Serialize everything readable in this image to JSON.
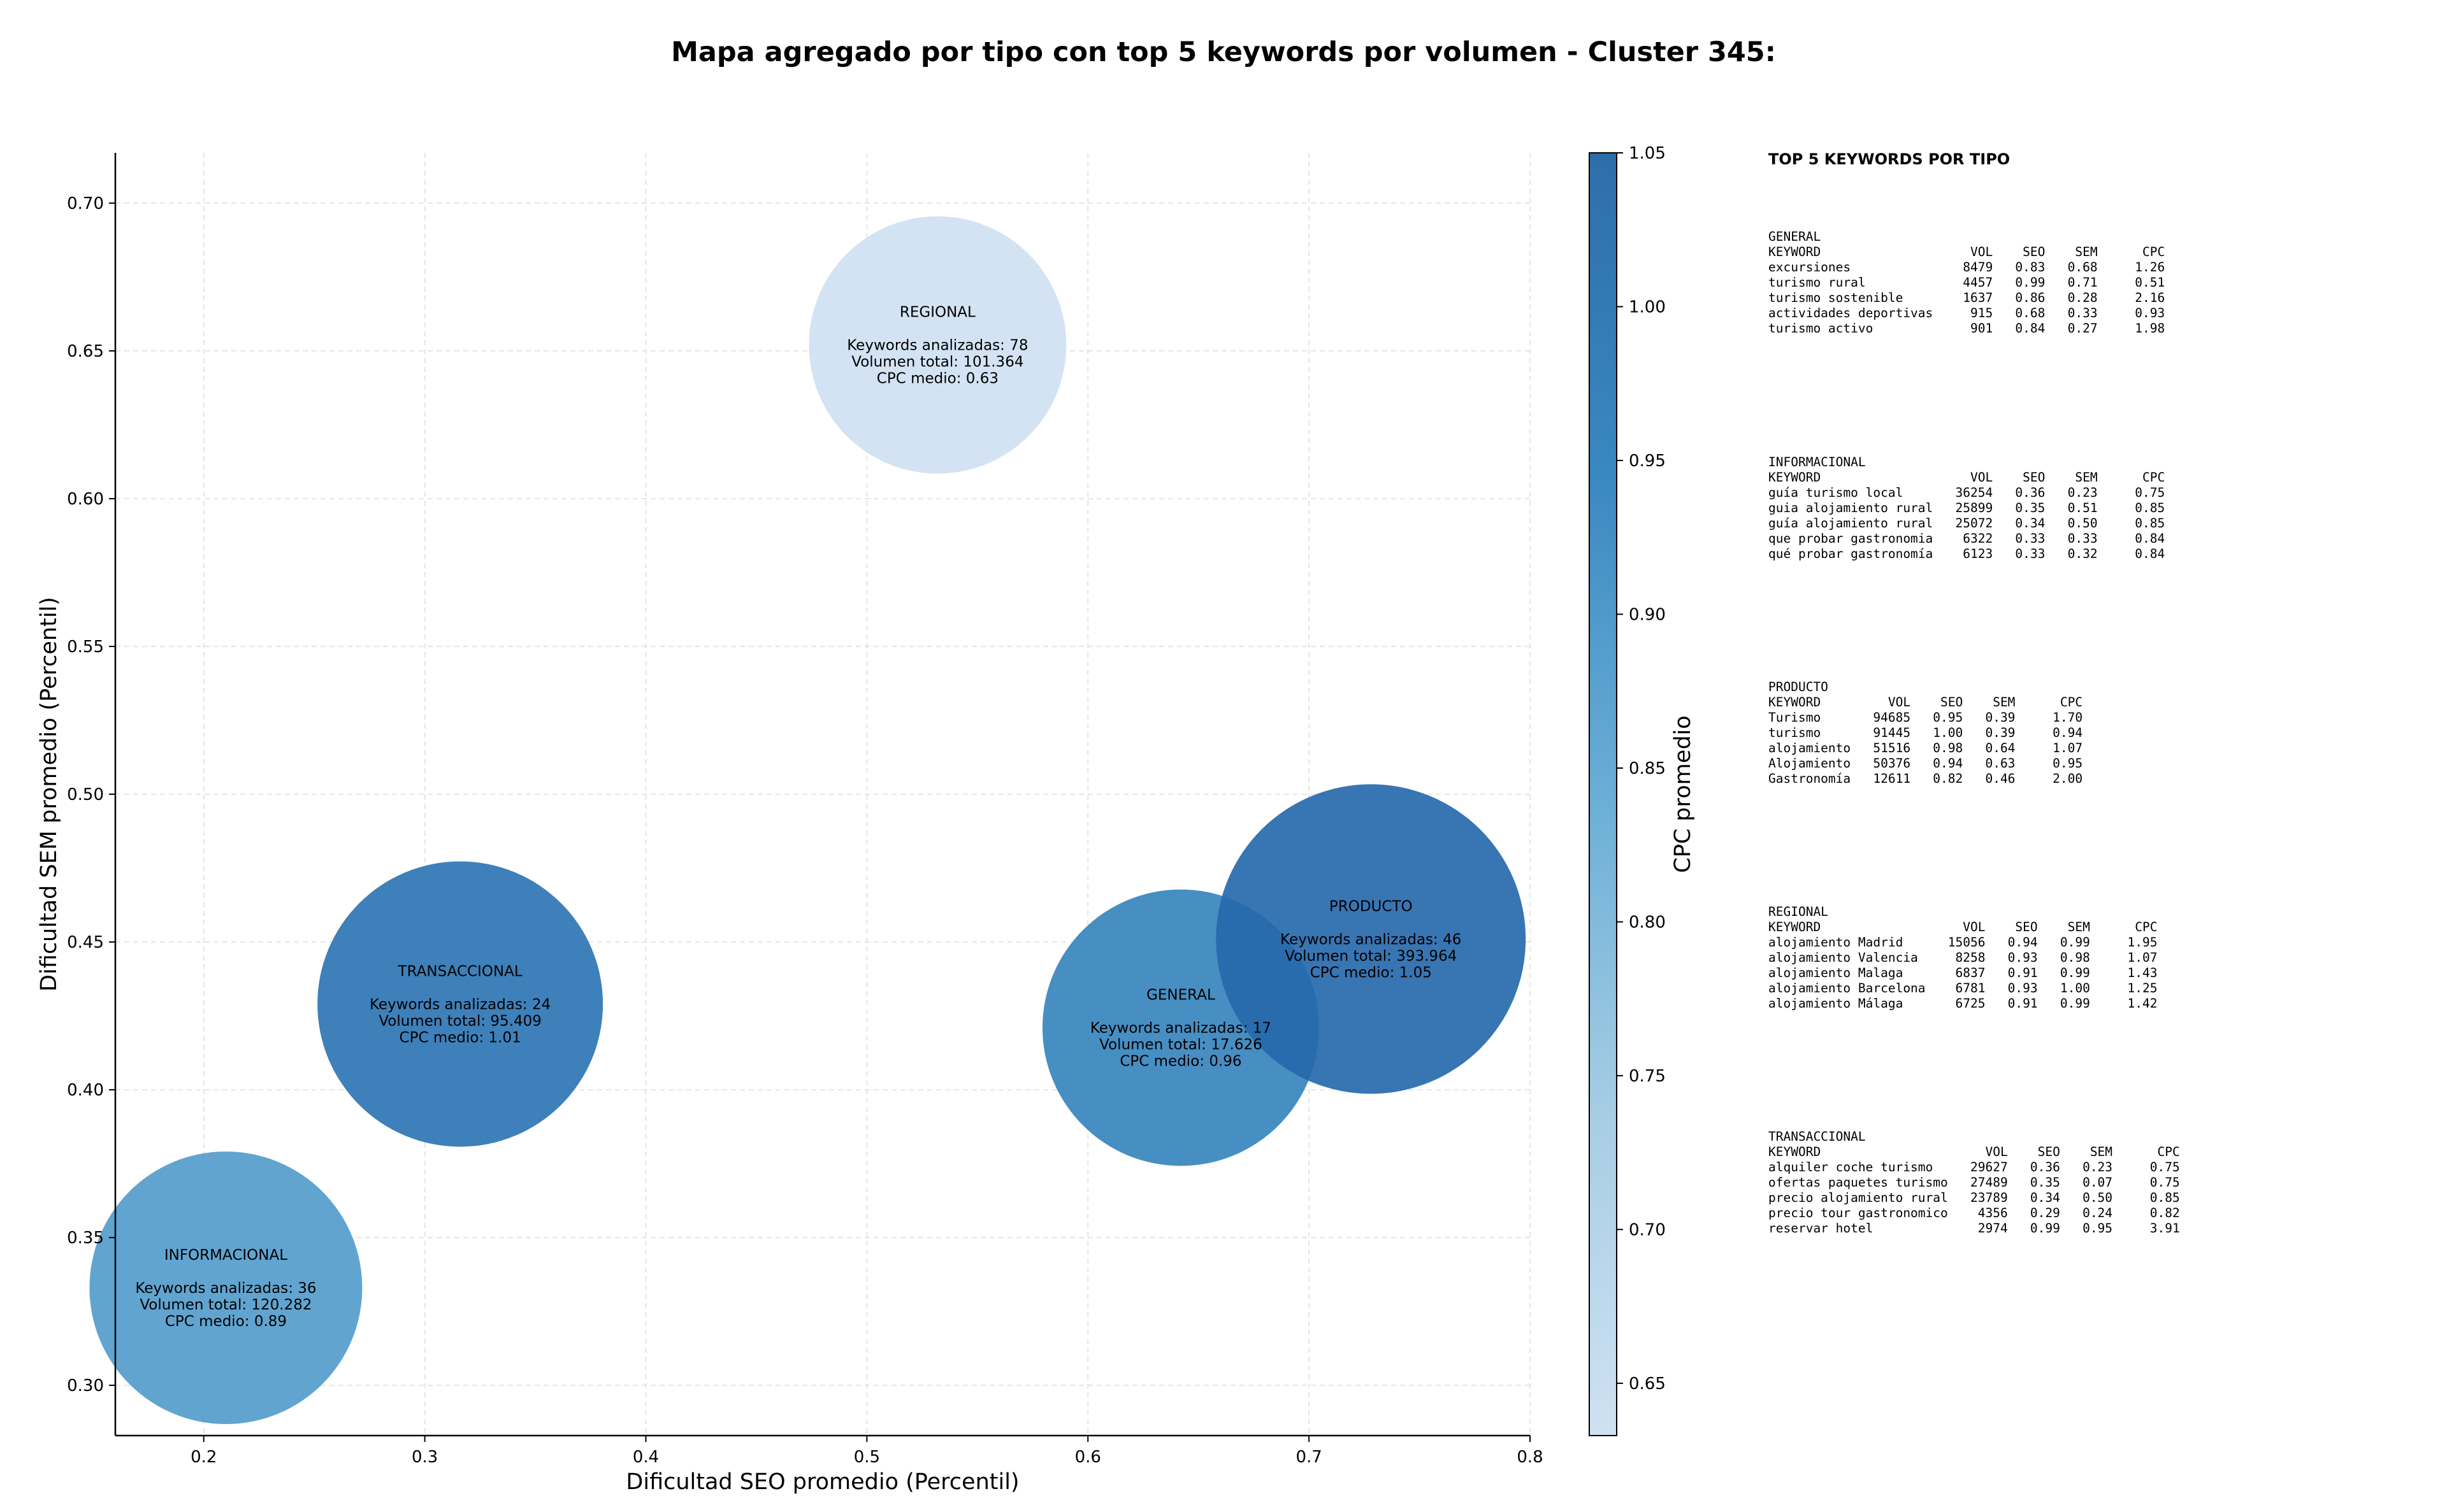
{
  "chart_data": {
    "type": "scatter",
    "title": "Mapa agregado por tipo con top 5 keywords por volumen - Cluster 345:",
    "xlabel": "Dificultad SEO promedio (Percentil)",
    "ylabel": "Dificultad SEM promedio (Percentil)",
    "xlim": [
      0.16,
      0.8
    ],
    "ylim": [
      0.283,
      0.717
    ],
    "x_ticks": [
      0.2,
      0.3,
      0.4,
      0.5,
      0.6,
      0.7,
      0.8
    ],
    "x_tick_labels": [
      "0.2",
      "0.3",
      "0.4",
      "0.5",
      "0.6",
      "0.7",
      "0.8"
    ],
    "y_ticks": [
      0.3,
      0.35,
      0.4,
      0.45,
      0.5,
      0.55,
      0.6,
      0.65,
      0.7
    ],
    "y_tick_labels": [
      "0.30",
      "0.35",
      "0.40",
      "0.45",
      "0.50",
      "0.55",
      "0.60",
      "0.65",
      "0.70"
    ],
    "grid": true,
    "colorbar": {
      "label": "CPC promedio",
      "range": [
        0.633,
        1.05
      ],
      "ticks": [
        0.65,
        0.7,
        0.75,
        0.8,
        0.85,
        0.9,
        0.95,
        1.0,
        1.05
      ],
      "tick_labels": [
        "0.65",
        "0.70",
        "0.75",
        "0.80",
        "0.85",
        "0.90",
        "0.95",
        "1.00",
        "1.05"
      ]
    },
    "points": [
      {
        "tipo": "REGIONAL",
        "x": 0.532,
        "y": 0.652,
        "keywords": 78,
        "volumen": 101364,
        "cpc": 0.63,
        "label_lines": [
          "REGIONAL",
          "",
          "Keywords analizadas: 78",
          "Volumen total: 101.364",
          "CPC medio: 0.63"
        ]
      },
      {
        "tipo": "TRANSACCIONAL",
        "x": 0.316,
        "y": 0.429,
        "keywords": 24,
        "volumen": 95409,
        "cpc": 1.01,
        "label_lines": [
          "TRANSACCIONAL",
          "",
          "Keywords analizadas: 24",
          "Volumen total: 95.409",
          "CPC medio: 1.01"
        ]
      },
      {
        "tipo": "INFORMACIONAL",
        "x": 0.21,
        "y": 0.333,
        "keywords": 36,
        "volumen": 120282,
        "cpc": 0.89,
        "label_lines": [
          "INFORMACIONAL",
          "",
          "Keywords analizadas: 36",
          "Volumen total: 120.282",
          "CPC medio: 0.89"
        ]
      },
      {
        "tipo": "GENERAL",
        "x": 0.642,
        "y": 0.421,
        "keywords": 17,
        "volumen": 17626,
        "cpc": 0.96,
        "label_lines": [
          "GENERAL",
          "",
          "Keywords analizadas: 17",
          "Volumen total: 17.626",
          "CPC medio: 0.96"
        ]
      },
      {
        "tipo": "PRODUCTO",
        "x": 0.728,
        "y": 0.451,
        "keywords": 46,
        "volumen": 393964,
        "cpc": 1.05,
        "label_lines": [
          "PRODUCTO",
          "",
          "Keywords analizadas: 46",
          "Volumen total: 393.964",
          "CPC medio: 1.05"
        ]
      }
    ]
  },
  "keywords_panel": {
    "title": "TOP 5 KEYWORDS POR TIPO",
    "blocks": [
      {
        "text": "GENERAL\nKEYWORD                    VOL    SEO    SEM      CPC\nexcursiones               8479   0.83   0.68     1.26\nturismo rural             4457   0.99   0.71     0.51\nturismo sostenible        1637   0.86   0.28     2.16\nactividades deportivas     915   0.68   0.33     0.93\nturismo activo             901   0.84   0.27     1.98"
      },
      {
        "text": "INFORMACIONAL\nKEYWORD                    VOL    SEO    SEM      CPC\nguía turismo local       36254   0.36   0.23     0.75\nguia alojamiento rural   25899   0.35   0.51     0.85\nguía alojamiento rural   25072   0.34   0.50     0.85\nque probar gastronomia    6322   0.33   0.33     0.84\nqué probar gastronomía    6123   0.33   0.32     0.84"
      },
      {
        "text": "PRODUCTO\nKEYWORD         VOL    SEO    SEM      CPC\nTurismo       94685   0.95   0.39     1.70\nturismo       91445   1.00   0.39     0.94\nalojamiento   51516   0.98   0.64     1.07\nAlojamiento   50376   0.94   0.63     0.95\nGastronomía   12611   0.82   0.46     2.00"
      },
      {
        "text": "REGIONAL\nKEYWORD                   VOL    SEO    SEM      CPC\nalojamiento Madrid      15056   0.94   0.99     1.95\nalojamiento Valencia     8258   0.93   0.98     1.07\nalojamiento Malaga       6837   0.91   0.99     1.43\nalojamiento Barcelona    6781   0.93   1.00     1.25\nalojamiento Málaga       6725   0.91   0.99     1.42"
      },
      {
        "text": "TRANSACCIONAL\nKEYWORD                      VOL    SEO    SEM      CPC\nalquiler coche turismo     29627   0.36   0.23     0.75\nofertas paquetes turismo   27489   0.35   0.07     0.75\nprecio alojamiento rural   23789   0.34   0.50     0.85\nprecio tour gastronomico    4356   0.29   0.24     0.82\nreservar hotel              2974   0.99   0.95     3.91"
      }
    ]
  }
}
